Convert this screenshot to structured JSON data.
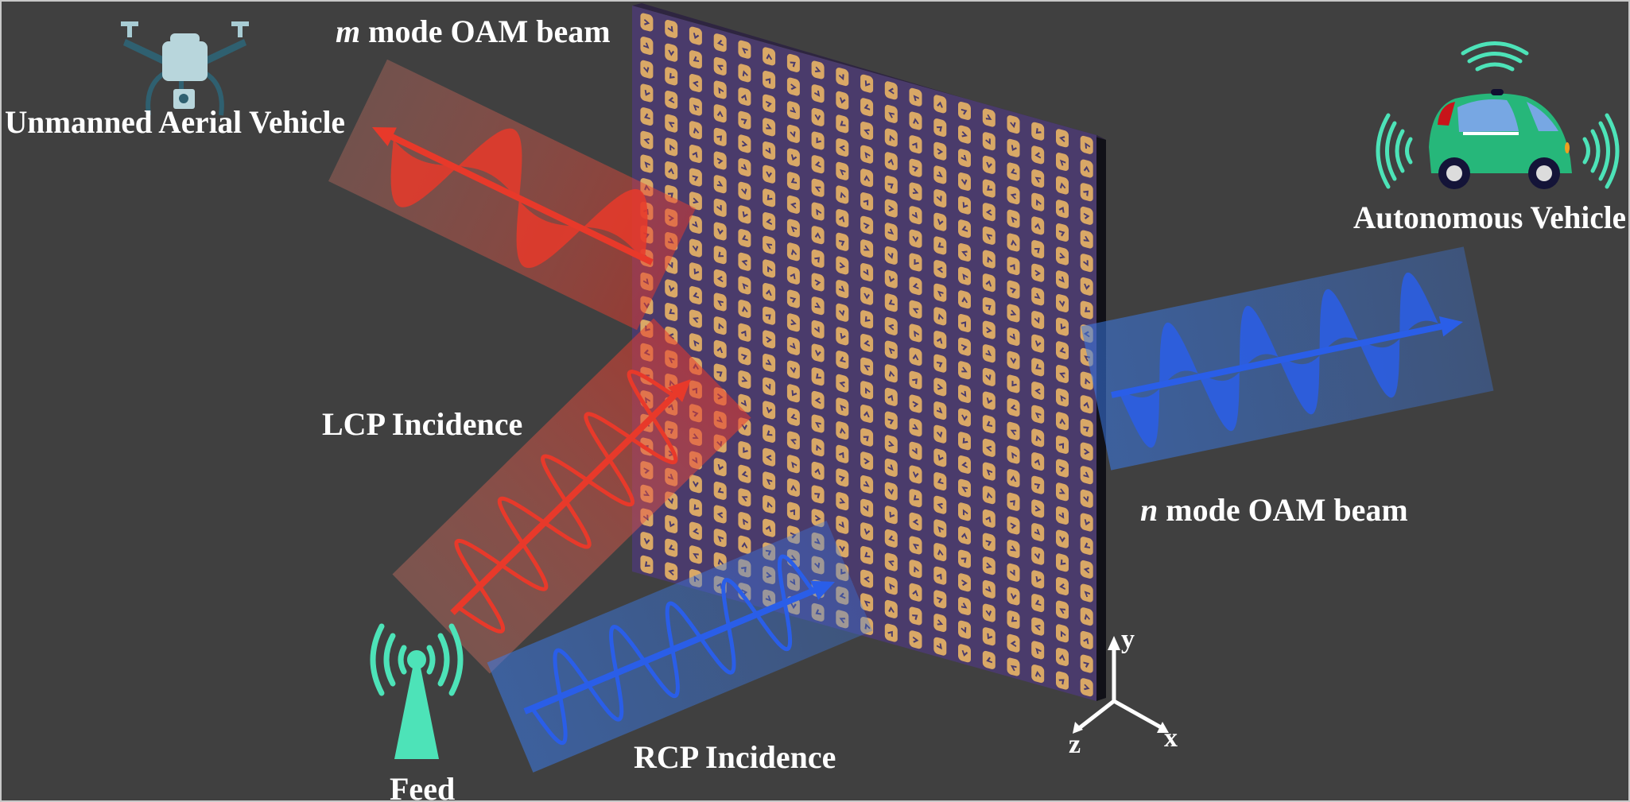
{
  "labels": {
    "uav": "Unmanned Aerial Vehicle",
    "m_beam_var": "m",
    "m_beam_text": " mode OAM beam",
    "autonomous": "Autonomous Vehicle",
    "lcp": "LCP Incidence",
    "n_beam_var": "n",
    "n_beam_text": " mode OAM beam",
    "rcp": "RCP Incidence",
    "feed": "Feed"
  },
  "axes": {
    "x": "x",
    "y": "y",
    "z": "z"
  },
  "icons": [
    "drone-icon",
    "autonomous-car-icon",
    "antenna-tower-icon"
  ],
  "colors": {
    "background": "#404040",
    "metasurface": "#4a3b6b",
    "unit_cell": "#d9a866",
    "red_beam": "#e8392a",
    "blue_beam": "#2a5ee8",
    "signal": "#4de3b8"
  }
}
